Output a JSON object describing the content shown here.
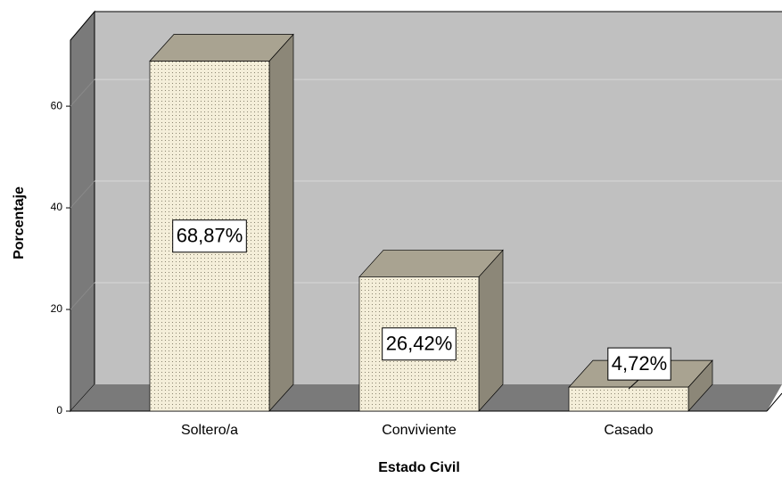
{
  "chart_data": {
    "type": "bar3d",
    "x_label": "Estado Civil",
    "y_label": "Porcentaje",
    "categories": [
      "Soltero/a",
      "Conviviente",
      "Casado"
    ],
    "values": [
      68.87,
      26.42,
      4.72
    ],
    "value_labels": [
      "68,87%",
      "26,42%",
      "4,72%"
    ],
    "color": "#f4eed9",
    "ylim": [
      0,
      73
    ],
    "yticks": [
      0,
      20,
      40,
      60
    ],
    "grid": true
  }
}
